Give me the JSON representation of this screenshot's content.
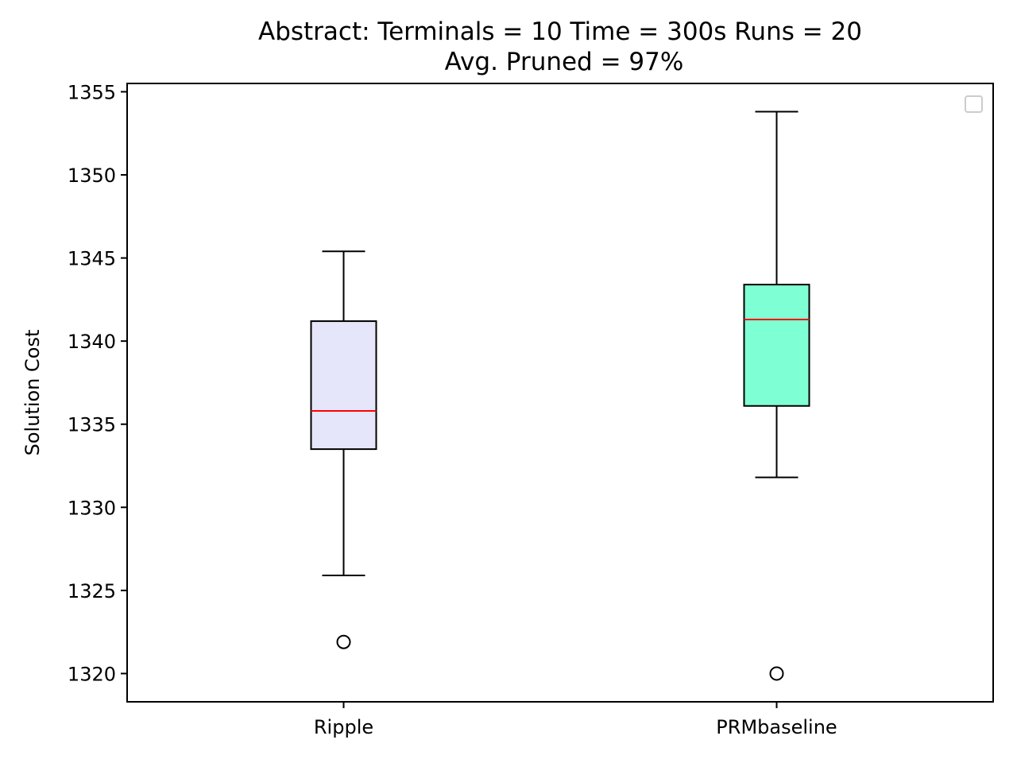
{
  "chart_data": {
    "type": "box",
    "title": "Abstract:  Terminals = 10  Time = 300s  Runs = 20",
    "subtitle": "Avg. Pruned = 97%",
    "xlabel": "",
    "ylabel": "Solution Cost",
    "ylim": [
      1318.3,
      1355.5
    ],
    "yticks": [
      1320,
      1325,
      1330,
      1335,
      1340,
      1345,
      1350,
      1355
    ],
    "categories": [
      "Ripple",
      "PRMbaseline"
    ],
    "boxes": [
      {
        "whisker_low": 1325.9,
        "q1": 1333.5,
        "median": 1335.8,
        "q3": 1341.2,
        "whisker_high": 1345.4,
        "outliers": [
          1321.9
        ],
        "fill": "#e6e6fa"
      },
      {
        "whisker_low": 1331.8,
        "q1": 1336.1,
        "median": 1341.3,
        "q3": 1343.4,
        "whisker_high": 1353.8,
        "outliers": [
          1320.0
        ],
        "fill": "#7fffd4"
      }
    ],
    "median_color": "#ff0000",
    "legend": "top-right",
    "grid": false
  }
}
